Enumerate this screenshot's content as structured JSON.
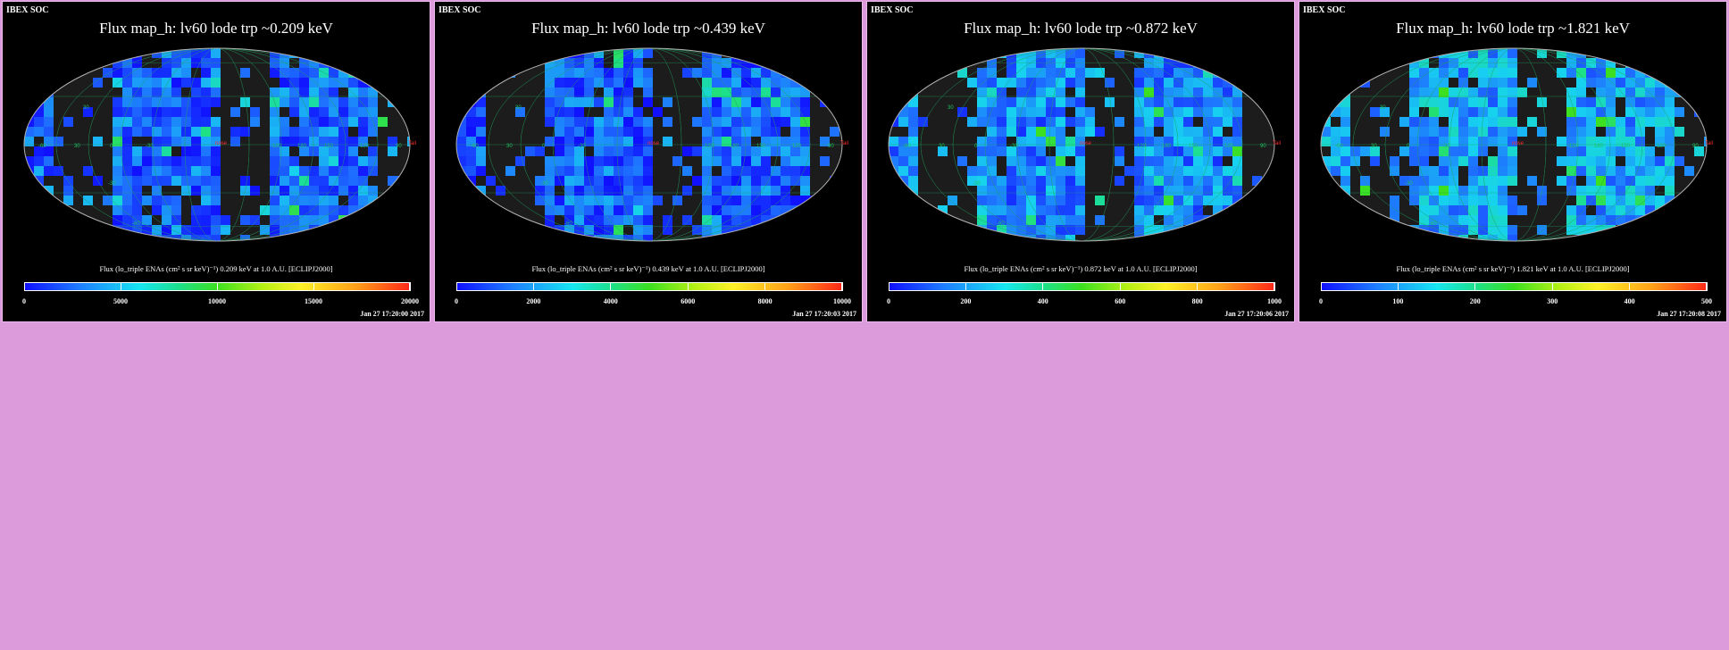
{
  "panels": [
    {
      "soc_label": "IBEX SOC",
      "title": "Flux   map_h: lv60 lode trp ~0.209 keV",
      "colorbar_title": "Flux (lo_triple ENAs (cm² s sr keV)⁻¹)  0.209 keV at 1.0 A.U. [ECLIPJ2000]",
      "colorbar_ticks": [
        "0",
        "5000",
        "10000",
        "15000",
        "20000"
      ],
      "colorbar_range": [
        0,
        20000
      ],
      "timestamp": "Jan 27 17:20:00 2017",
      "intensity": 0.22
    },
    {
      "soc_label": "IBEX SOC",
      "title": "Flux   map_h: lv60 lode trp ~0.439 keV",
      "colorbar_title": "Flux (lo_triple ENAs (cm² s sr keV)⁻¹)  0.439 keV at 1.0 A.U. [ECLIPJ2000]",
      "colorbar_ticks": [
        "0",
        "2000",
        "4000",
        "6000",
        "8000",
        "10000"
      ],
      "colorbar_range": [
        0,
        10000
      ],
      "timestamp": "Jan 27 17:20:03 2017",
      "intensity": 0.2
    },
    {
      "soc_label": "IBEX SOC",
      "title": "Flux   map_h: lv60 lode trp ~0.872 keV",
      "colorbar_title": "Flux (lo_triple ENAs (cm² s sr keV)⁻¹)  0.872 keV at 1.0 A.U. [ECLIPJ2000]",
      "colorbar_ticks": [
        "0",
        "200",
        "400",
        "600",
        "800",
        "1000"
      ],
      "colorbar_range": [
        0,
        1000
      ],
      "timestamp": "Jan 27 17:20:06 2017",
      "intensity": 0.3
    },
    {
      "soc_label": "IBEX SOC",
      "title": "Flux   map_h: lv60 lode trp ~1.821 keV",
      "colorbar_title": "Flux (lo_triple ENAs (cm² s sr keV)⁻¹)  1.821 keV at 1.0 A.U. [ECLIPJ2000]",
      "colorbar_ticks": [
        "0",
        "100",
        "200",
        "300",
        "400",
        "500"
      ],
      "colorbar_range": [
        0,
        500
      ],
      "timestamp": "Jan 27 17:20:08 2017",
      "intensity": 0.4
    }
  ],
  "grid_labels": {
    "meridians": [
      "-60",
      "30",
      "0",
      "-30",
      "-120",
      "180",
      "150",
      "120",
      "90"
    ],
    "parallels": [
      "30",
      "-30",
      "-60"
    ],
    "center_label": "nose",
    "tail_label": "Tail"
  },
  "colors": {
    "background": "#dc9cdc",
    "panel_border": "#f0b8f0",
    "map_empty": "#1c1c1c",
    "grid_line": "#20a060",
    "marker": "#ff3030"
  }
}
